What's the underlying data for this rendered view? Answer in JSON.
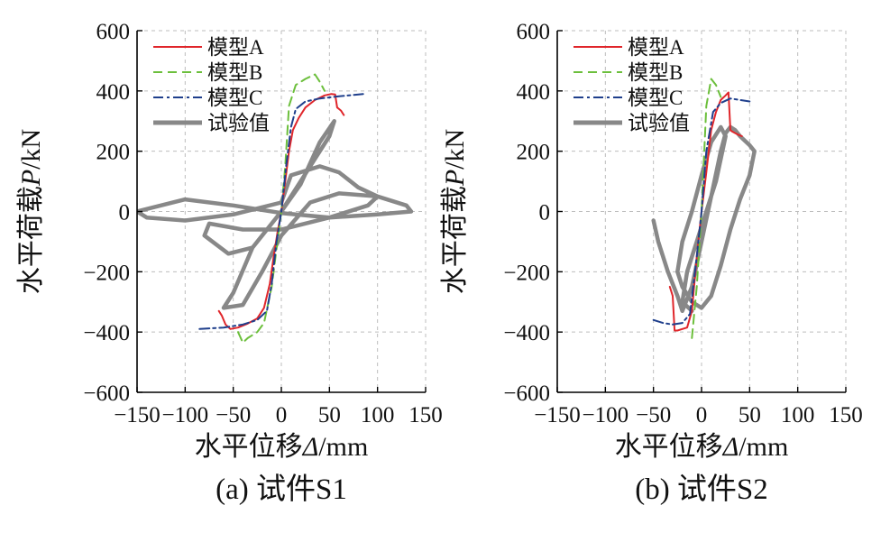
{
  "chart_data": [
    {
      "type": "line",
      "caption": "(a) 试件S1",
      "xlabel": "水平位移Δ/mm",
      "ylabel": "水平荷载P/kN",
      "xlim": [
        -150,
        150
      ],
      "ylim": [
        -600,
        600
      ],
      "xticks": [
        -150,
        -100,
        -50,
        0,
        50,
        100,
        150
      ],
      "yticks": [
        -600,
        -400,
        -200,
        0,
        200,
        400,
        600
      ],
      "xtick_labels": [
        "−150",
        "−100",
        "−50",
        "0",
        "50",
        "100",
        "150"
      ],
      "ytick_labels": [
        "−600",
        "−400",
        "−200",
        "0",
        "200",
        "400",
        "600"
      ],
      "grid": true,
      "legend_position": "top-left",
      "series": [
        {
          "name": "模型A",
          "color": "#e0262b",
          "dash": "solid",
          "x": [
            -65,
            -62,
            -58,
            -53,
            -45,
            -35,
            -25,
            -18,
            -12,
            -8,
            -4,
            0,
            4,
            8,
            12,
            18,
            25,
            35,
            45,
            52,
            56,
            58,
            60,
            62,
            65
          ],
          "y": [
            -330,
            -345,
            -375,
            -390,
            -385,
            -372,
            -355,
            -320,
            -240,
            -150,
            -70,
            0,
            100,
            200,
            270,
            310,
            345,
            370,
            385,
            390,
            388,
            345,
            340,
            335,
            320
          ]
        },
        {
          "name": "模型B",
          "color": "#6cbf3c",
          "dash": "dashed",
          "x": [
            -45,
            -40,
            -35,
            -25,
            -18,
            -10,
            -4,
            0,
            4,
            8,
            15,
            25,
            35,
            40,
            45
          ],
          "y": [
            -400,
            -435,
            -420,
            -400,
            -370,
            -250,
            -100,
            0,
            150,
            350,
            420,
            440,
            455,
            430,
            400
          ]
        },
        {
          "name": "模型C",
          "color": "#1f3f8c",
          "dash": "dashdot",
          "x": [
            -85,
            -60,
            -40,
            -25,
            -15,
            -10,
            -5,
            0,
            5,
            10,
            15,
            25,
            40,
            60,
            85
          ],
          "y": [
            -390,
            -385,
            -375,
            -360,
            -330,
            -240,
            -100,
            0,
            150,
            280,
            340,
            365,
            375,
            382,
            390
          ]
        },
        {
          "name": "试验值",
          "color": "#888888",
          "dash": "solid",
          "thick": true,
          "x": [
            0,
            30,
            50,
            55,
            40,
            20,
            0,
            -30,
            -50,
            -60,
            -40,
            -20,
            0,
            30,
            60,
            100,
            130,
            135,
            100,
            50,
            0,
            -50,
            -100,
            -150,
            -140,
            -100,
            -50,
            0,
            10,
            40,
            60,
            80,
            100,
            90,
            50,
            0,
            -40,
            -75,
            -80,
            -55,
            -30,
            0
          ],
          "y": [
            0,
            150,
            250,
            300,
            230,
            90,
            0,
            -120,
            -270,
            -320,
            -310,
            -200,
            -80,
            30,
            60,
            50,
            20,
            0,
            -10,
            -20,
            -5,
            20,
            40,
            0,
            -20,
            -30,
            -10,
            30,
            120,
            150,
            130,
            80,
            50,
            20,
            -20,
            -60,
            -60,
            -40,
            -80,
            -140,
            -120,
            0
          ]
        }
      ]
    },
    {
      "type": "line",
      "caption": "(b) 试件S2",
      "xlabel": "水平位移Δ/mm",
      "ylabel": "水平荷载P/kN",
      "xlim": [
        -150,
        150
      ],
      "ylim": [
        -600,
        600
      ],
      "xticks": [
        -150,
        -100,
        -50,
        0,
        50,
        100,
        150
      ],
      "yticks": [
        -600,
        -400,
        -200,
        0,
        200,
        400,
        600
      ],
      "xtick_labels": [
        "−150",
        "−100",
        "−50",
        "0",
        "50",
        "100",
        "150"
      ],
      "ytick_labels": [
        "−600",
        "−400",
        "−200",
        "0",
        "200",
        "400",
        "600"
      ],
      "grid": true,
      "legend_position": "top-left",
      "series": [
        {
          "name": "模型A",
          "color": "#e0262b",
          "dash": "solid",
          "x": [
            -33,
            -30,
            -28,
            -25,
            -20,
            -15,
            -10,
            -5,
            0,
            5,
            10,
            15,
            20,
            25,
            28,
            30,
            32,
            35,
            38,
            42
          ],
          "y": [
            -250,
            -280,
            -395,
            -395,
            -390,
            -385,
            -330,
            -150,
            0,
            130,
            270,
            330,
            370,
            385,
            395,
            270,
            265,
            260,
            255,
            250
          ]
        },
        {
          "name": "模型B",
          "color": "#6cbf3c",
          "dash": "dashed",
          "x": [
            -10,
            -5,
            0,
            5,
            10,
            15,
            20
          ],
          "y": [
            -420,
            -250,
            0,
            350,
            440,
            420,
            380
          ]
        },
        {
          "name": "模型C",
          "color": "#1f3f8c",
          "dash": "dashdot",
          "x": [
            -50,
            -40,
            -30,
            -20,
            -12,
            -5,
            0,
            5,
            12,
            20,
            30,
            40,
            50
          ],
          "y": [
            -360,
            -370,
            -375,
            -370,
            -340,
            -150,
            0,
            200,
            330,
            360,
            375,
            370,
            365
          ]
        },
        {
          "name": "试验值",
          "color": "#888888",
          "dash": "solid",
          "thick": true,
          "x": [
            -50,
            -45,
            -35,
            -25,
            -20,
            -10,
            0,
            10,
            20,
            25,
            30,
            35,
            40,
            50,
            55,
            50,
            40,
            30,
            20,
            10,
            0,
            -10,
            -20,
            -25,
            -20,
            -10,
            0,
            10,
            20,
            25,
            15,
            5,
            -5,
            -15,
            -20,
            -10
          ],
          "y": [
            -30,
            -100,
            -200,
            -280,
            -330,
            -250,
            -100,
            50,
            200,
            260,
            280,
            270,
            250,
            220,
            200,
            120,
            40,
            -60,
            -180,
            -280,
            -320,
            -300,
            -250,
            -200,
            -100,
            0,
            120,
            230,
            280,
            250,
            100,
            0,
            -100,
            -200,
            -300,
            -330
          ]
        }
      ]
    }
  ]
}
